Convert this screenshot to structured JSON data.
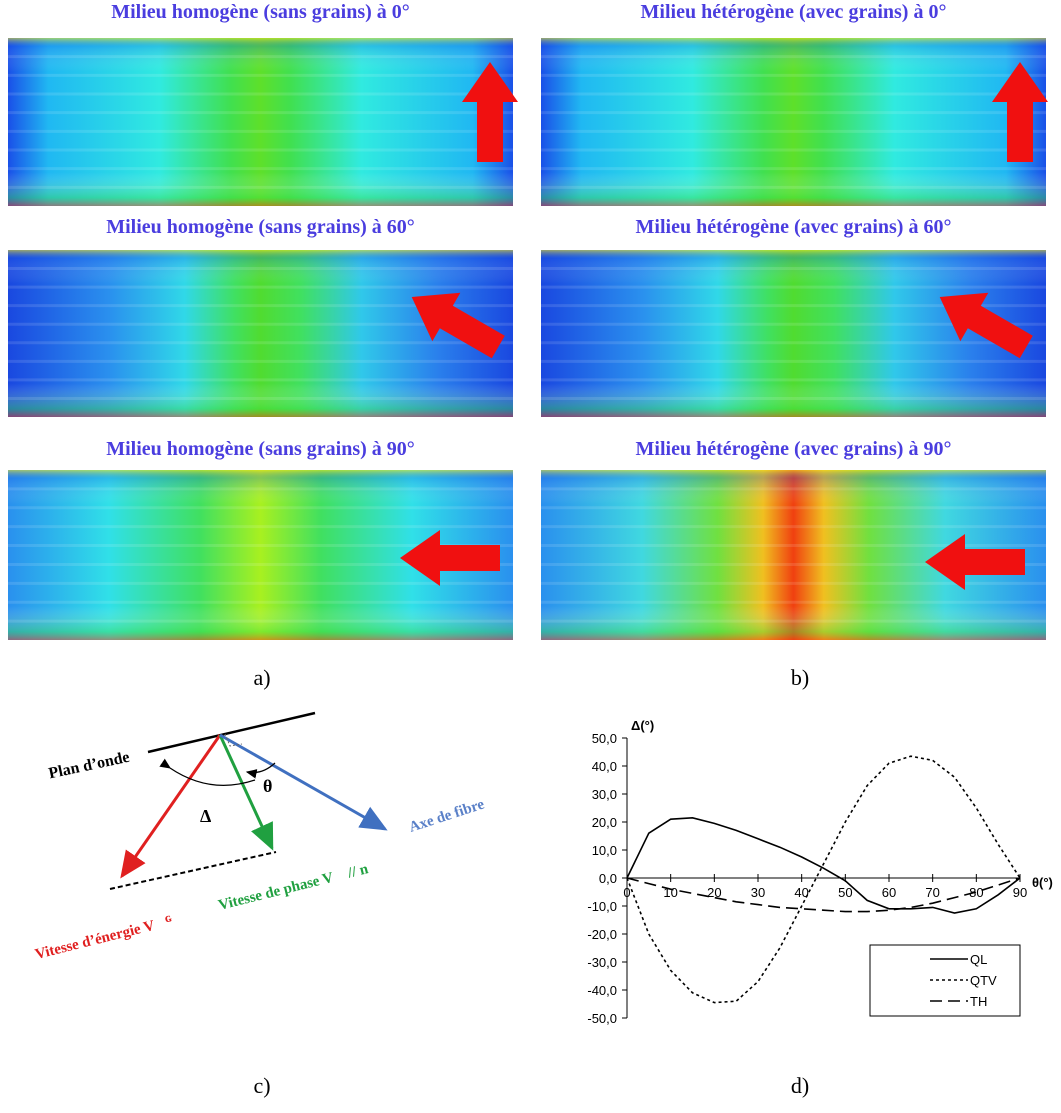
{
  "panels": [
    {
      "title": "Milieu homogène (sans grains) à 0°"
    },
    {
      "title": "Milieu hétérogène (avec grains) à 0°"
    },
    {
      "title": "Milieu homogène (sans grains) à 60°"
    },
    {
      "title": "Milieu hétérogène (avec grains) à 60°"
    },
    {
      "title": "Milieu homogène (sans grains) à 90°"
    },
    {
      "title": "Milieu hétérogène (avec grains) à 90°"
    }
  ],
  "panel_labels": [
    "a)",
    "b)",
    "c)",
    "d)"
  ],
  "diagram": {
    "wave_plane": "Plan d’onde",
    "energy_velocity": "Vitesse d’énergie V⃗ᴳ",
    "phase_velocity": "Vitesse de phase V⃗ // n⃗",
    "fiber_axis": "Axe de fibre",
    "delta": "Δ",
    "theta": "θ"
  },
  "chart_data": {
    "type": "line",
    "y_label": "Δ(°)",
    "x_label": "θ(°)",
    "x": [
      0,
      5,
      10,
      15,
      20,
      25,
      30,
      35,
      40,
      45,
      50,
      55,
      60,
      65,
      70,
      75,
      80,
      85,
      90
    ],
    "series": [
      {
        "name": "QL",
        "color": "#000000",
        "dash": "solid",
        "values": [
          0,
          16,
          21,
          21.5,
          19.5,
          17,
          14,
          11,
          7.5,
          3.5,
          -1,
          -8,
          -11,
          -11,
          -10.5,
          -12.5,
          -11,
          -6,
          0
        ]
      },
      {
        "name": "QTV",
        "color": "#000000",
        "dash": "dotted",
        "values": [
          0,
          -20,
          -33,
          -41,
          -44.5,
          -44,
          -37,
          -25,
          -10,
          5,
          20,
          33,
          41,
          43.5,
          42,
          36,
          25,
          12,
          0
        ]
      },
      {
        "name": "TH",
        "color": "#000000",
        "dash": "dashed",
        "values": [
          0,
          -2,
          -4,
          -5.5,
          -7,
          -8.5,
          -9.5,
          -10.5,
          -11,
          -11.5,
          -12,
          -12,
          -11.5,
          -10.5,
          -9,
          -7,
          -5,
          -2.5,
          0
        ]
      }
    ],
    "xlim": [
      0,
      90
    ],
    "xticks": [
      0,
      10,
      20,
      30,
      40,
      50,
      60,
      70,
      80,
      90
    ],
    "ylim": [
      -50,
      50
    ],
    "yticks": [
      {
        "value": -50,
        "label": "-50,0"
      },
      {
        "value": -40,
        "label": "-40,0"
      },
      {
        "value": -30,
        "label": "-30,0"
      },
      {
        "value": -20,
        "label": "-20,0"
      },
      {
        "value": -10,
        "label": "-10,0"
      },
      {
        "value": 0,
        "label": "0,0"
      },
      {
        "value": 10,
        "label": "10,0"
      },
      {
        "value": 20,
        "label": "20,0"
      },
      {
        "value": 30,
        "label": "30,0"
      },
      {
        "value": 40,
        "label": "40,0"
      },
      {
        "value": 50,
        "label": "50,0"
      }
    ],
    "legend": "bottom-right"
  }
}
